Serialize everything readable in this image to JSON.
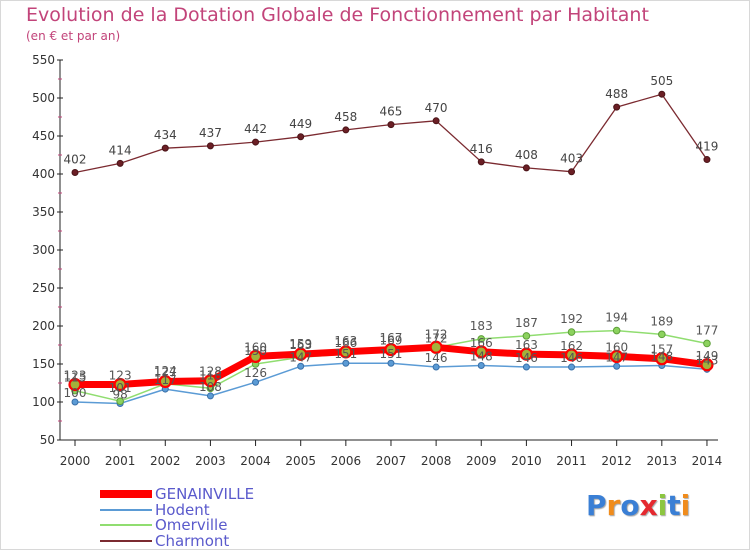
{
  "header": {
    "title": "Evolution de la Dotation Globale de Fonctionnement par Habitant",
    "subtitle": "(en € et par an)"
  },
  "chart_data": {
    "type": "line",
    "title": "Evolution de la Dotation Globale de Fonctionnement par Habitant",
    "subtitle": "(en € et par an)",
    "xlabel": "",
    "ylabel": "",
    "ylim": [
      50,
      550
    ],
    "yticks": [
      50,
      100,
      150,
      200,
      250,
      300,
      350,
      400,
      450,
      500,
      550
    ],
    "grid": false,
    "legend_position": "bottom-left",
    "x": [
      "2000",
      "2001",
      "2002",
      "2003",
      "2004",
      "2005",
      "2006",
      "2007",
      "2008",
      "2009",
      "2010",
      "2011",
      "2012",
      "2013",
      "2014"
    ],
    "series": [
      {
        "name": "GENAINVILLE",
        "color": "#ff0000",
        "values": [
          123,
          123,
          127,
          128,
          160,
          163,
          166,
          169,
          172,
          166,
          163,
          162,
          160,
          157,
          149
        ]
      },
      {
        "name": "Hodent",
        "color": "#5b9bd5",
        "values": [
          100,
          98,
          117,
          108,
          126,
          147,
          151,
          151,
          146,
          148,
          146,
          146,
          147,
          148,
          143
        ]
      },
      {
        "name": "Omerville",
        "color": "#90dd70",
        "values": [
          115,
          101,
          124,
          118,
          150,
          159,
          163,
          167,
          172,
          183,
          187,
          192,
          194,
          189,
          177
        ]
      },
      {
        "name": "Charmont",
        "color": "#7b2a30",
        "values": [
          402,
          414,
          434,
          437,
          442,
          449,
          458,
          465,
          470,
          416,
          408,
          403,
          488,
          505,
          419
        ]
      }
    ]
  },
  "logo": {
    "letters": [
      "P",
      "r",
      "o",
      "x",
      "i",
      "t",
      "i"
    ],
    "colors": [
      "#3a7fd5",
      "#f08c1c",
      "#3a7fd5",
      "#e5292f",
      "#8cc63f",
      "#3a7fd5",
      "#f08c1c"
    ]
  }
}
